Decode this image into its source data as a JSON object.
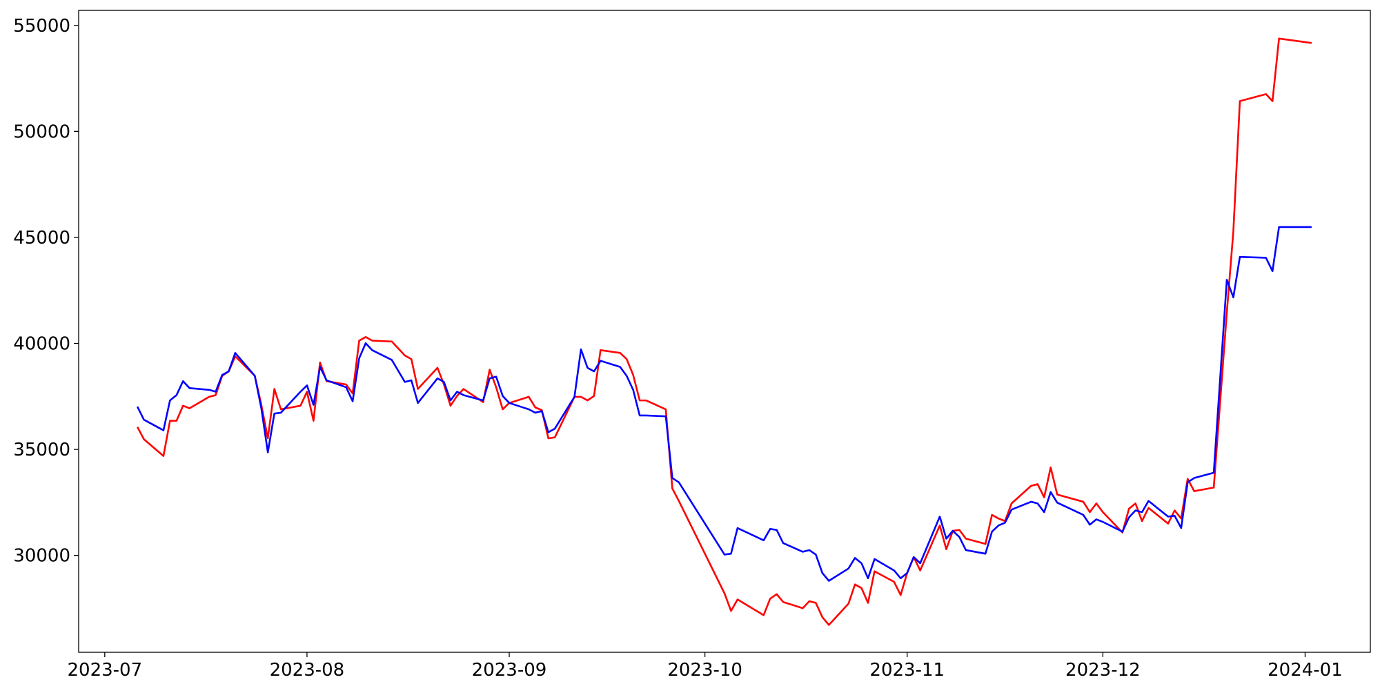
{
  "chart_data": {
    "type": "line",
    "x": [
      "2023-07-06",
      "2023-07-07",
      "2023-07-10",
      "2023-07-11",
      "2023-07-12",
      "2023-07-13",
      "2023-07-14",
      "2023-07-17",
      "2023-07-18",
      "2023-07-19",
      "2023-07-20",
      "2023-07-21",
      "2023-07-24",
      "2023-07-25",
      "2023-07-26",
      "2023-07-27",
      "2023-07-28",
      "2023-07-31",
      "2023-08-01",
      "2023-08-02",
      "2023-08-03",
      "2023-08-04",
      "2023-08-07",
      "2023-08-08",
      "2023-08-09",
      "2023-08-10",
      "2023-08-11",
      "2023-08-14",
      "2023-08-16",
      "2023-08-17",
      "2023-08-18",
      "2023-08-21",
      "2023-08-22",
      "2023-08-23",
      "2023-08-24",
      "2023-08-25",
      "2023-08-28",
      "2023-08-29",
      "2023-08-30",
      "2023-08-31",
      "2023-09-01",
      "2023-09-04",
      "2023-09-05",
      "2023-09-06",
      "2023-09-07",
      "2023-09-08",
      "2023-09-11",
      "2023-09-12",
      "2023-09-13",
      "2023-09-14",
      "2023-09-15",
      "2023-09-18",
      "2023-09-19",
      "2023-09-20",
      "2023-09-21",
      "2023-09-22",
      "2023-09-25",
      "2023-09-26",
      "2023-09-27",
      "2023-10-04",
      "2023-10-05",
      "2023-10-06",
      "2023-10-10",
      "2023-10-11",
      "2023-10-12",
      "2023-10-13",
      "2023-10-16",
      "2023-10-17",
      "2023-10-18",
      "2023-10-19",
      "2023-10-20",
      "2023-10-23",
      "2023-10-24",
      "2023-10-25",
      "2023-10-26",
      "2023-10-27",
      "2023-10-30",
      "2023-10-31",
      "2023-11-01",
      "2023-11-02",
      "2023-11-03",
      "2023-11-06",
      "2023-11-07",
      "2023-11-08",
      "2023-11-09",
      "2023-11-10",
      "2023-11-13",
      "2023-11-14",
      "2023-11-15",
      "2023-11-16",
      "2023-11-17",
      "2023-11-20",
      "2023-11-21",
      "2023-11-22",
      "2023-11-23",
      "2023-11-24",
      "2023-11-28",
      "2023-11-29",
      "2023-11-30",
      "2023-12-01",
      "2023-12-04",
      "2023-12-05",
      "2023-12-06",
      "2023-12-07",
      "2023-12-08",
      "2023-12-11",
      "2023-12-12",
      "2023-12-13",
      "2023-12-14",
      "2023-12-15",
      "2023-12-18",
      "2023-12-20",
      "2023-12-21",
      "2023-12-22",
      "2023-12-26",
      "2023-12-27",
      "2023-12-28",
      "2024-01-02"
    ],
    "series": [
      {
        "color": "#ff0000",
        "values": [
          36060,
          35480,
          34690,
          36350,
          36350,
          37060,
          36940,
          37480,
          37560,
          38470,
          38680,
          39390,
          38470,
          37100,
          35520,
          37850,
          36890,
          37060,
          37720,
          36350,
          39100,
          38220,
          38060,
          37640,
          40130,
          40300,
          40130,
          40090,
          39430,
          39260,
          37850,
          38850,
          38060,
          37060,
          37520,
          37850,
          37230,
          38760,
          37930,
          36890,
          37190,
          37480,
          36980,
          36850,
          35520,
          35570,
          37480,
          37480,
          37310,
          37520,
          39680,
          39550,
          39260,
          38510,
          37310,
          37310,
          36890,
          33160,
          32570,
          28210,
          27380,
          27920,
          27180,
          27960,
          28170,
          27800,
          27510,
          27840,
          27760,
          27090,
          26720,
          27720,
          28630,
          28460,
          27760,
          29250,
          28750,
          28130,
          29170,
          29920,
          29290,
          31410,
          30290,
          31160,
          31200,
          30790,
          30540,
          31910,
          31740,
          31620,
          32450,
          33280,
          33360,
          32740,
          34150,
          32870,
          32530,
          32040,
          32450,
          32040,
          31080,
          32200,
          32450,
          31620,
          32240,
          31500,
          32120,
          31740,
          33610,
          33030,
          33200,
          41460,
          45280,
          51430,
          51760,
          51430,
          54380,
          54170
        ]
      },
      {
        "color": "#0000ff",
        "values": [
          37020,
          36400,
          35900,
          37310,
          37560,
          38220,
          37890,
          37810,
          37720,
          38510,
          38680,
          39550,
          38470,
          36940,
          34860,
          36690,
          36730,
          37720,
          38020,
          37100,
          38890,
          38260,
          37930,
          37270,
          39300,
          40010,
          39680,
          39220,
          38180,
          38260,
          37190,
          38350,
          38180,
          37310,
          37720,
          37560,
          37310,
          38350,
          38430,
          37520,
          37190,
          36890,
          36730,
          36810,
          35810,
          35980,
          37480,
          39720,
          38850,
          38680,
          39180,
          38890,
          38470,
          37810,
          36600,
          36600,
          36560,
          33650,
          33450,
          30040,
          30080,
          31290,
          30710,
          31250,
          31200,
          30580,
          30170,
          30250,
          30040,
          29170,
          28800,
          29380,
          29880,
          29630,
          28920,
          29830,
          29290,
          28920,
          29170,
          29920,
          29630,
          31830,
          30790,
          31160,
          30870,
          30250,
          30080,
          31120,
          31410,
          31540,
          32160,
          32530,
          32450,
          32040,
          32990,
          32490,
          31910,
          31450,
          31700,
          31580,
          31120,
          31790,
          32120,
          32040,
          32570,
          31830,
          31870,
          31290,
          33450,
          33650,
          33900,
          43000,
          42170,
          44080,
          44040,
          43410,
          45490,
          45490
        ]
      }
    ],
    "xlim": [
      "2023-06-27",
      "2024-01-11"
    ],
    "xticks": [
      {
        "value": "2023-07-01",
        "label": "2023-07"
      },
      {
        "value": "2023-08-01",
        "label": "2023-08"
      },
      {
        "value": "2023-09-01",
        "label": "2023-09"
      },
      {
        "value": "2023-10-01",
        "label": "2023-10"
      },
      {
        "value": "2023-11-01",
        "label": "2023-11"
      },
      {
        "value": "2023-12-01",
        "label": "2023-12"
      },
      {
        "value": "2024-01-01",
        "label": "2024-01"
      }
    ],
    "ylim": [
      25430,
      55710
    ],
    "yticks": [
      30000,
      35000,
      40000,
      45000,
      50000,
      55000
    ],
    "grid": false
  }
}
